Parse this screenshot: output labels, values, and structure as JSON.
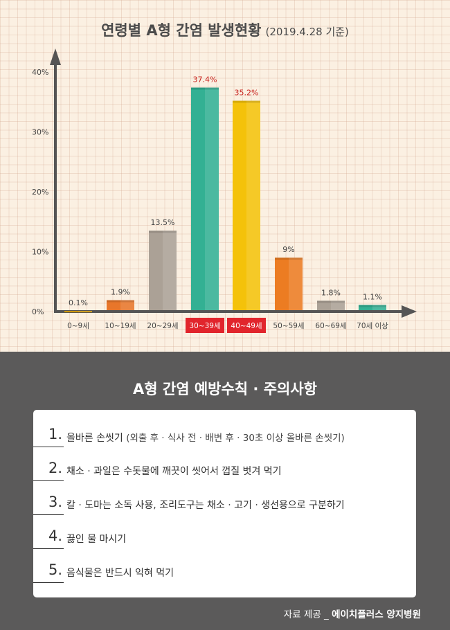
{
  "chart_data": {
    "type": "bar",
    "title": "연령별 A형 간염 발생현황",
    "subtitle": "(2019.4.28 기준)",
    "categories": [
      "0~9세",
      "10~19세",
      "20~29세",
      "30~39세",
      "40~49세",
      "50~59세",
      "60~69세",
      "70세 이상"
    ],
    "values": [
      0.1,
      1.9,
      13.5,
      37.4,
      35.2,
      9,
      1.8,
      1.1
    ],
    "data_labels": [
      "0.1%",
      "1.9%",
      "13.5%",
      "37.4%",
      "35.2%",
      "9%",
      "1.8%",
      "1.1%"
    ],
    "yticks": [
      "0%",
      "10%",
      "20%",
      "30%",
      "40%"
    ],
    "ytick_values": [
      0,
      10,
      20,
      30,
      40
    ],
    "ylim": [
      0,
      45
    ],
    "bar_colors": [
      "#f3b10a",
      "#e8762a",
      "#aba196",
      "#33b093",
      "#f4c20a",
      "#ec7c22",
      "#aba196",
      "#33b093"
    ],
    "highlight_categories": [
      "30~39세",
      "40~49세"
    ],
    "highlight_color": "#e1252c",
    "grid": true
  },
  "prevention": {
    "title": "A형 간염 예방수칙 · 주의사항",
    "items": [
      {
        "num": "1.",
        "text": "올바른 손씻기",
        "note": "(외출 후 · 식사 전 · 배변 후 · 30초 이상 올바른 손씻기)"
      },
      {
        "num": "2.",
        "text": "채소 · 과일은 수돗물에 깨끗이 씻어서 껍질 벗겨 먹기",
        "note": ""
      },
      {
        "num": "3.",
        "text": "칼 · 도마는 소독 사용, 조리도구는 채소 · 고기 · 생선용으로 구분하기",
        "note": ""
      },
      {
        "num": "4.",
        "text": "끓인 물 마시기",
        "note": ""
      },
      {
        "num": "5.",
        "text": "음식물은 반드시 익혀 먹기",
        "note": ""
      }
    ]
  },
  "source": {
    "prefix": "자료 제공 _",
    "org": "에이치플러스 양지병원"
  }
}
